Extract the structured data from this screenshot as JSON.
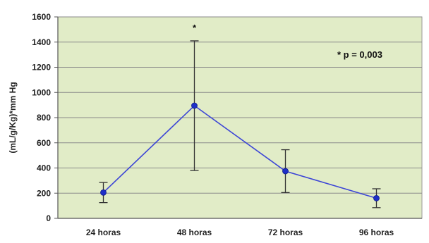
{
  "chart_data": {
    "type": "line",
    "ylabel": "(mL/g/Kg)*mm Hg",
    "categories": [
      "24 horas",
      "48 horas",
      "72 horas",
      "96 horas"
    ],
    "series": [
      {
        "values": [
          205,
          895,
          375,
          160
        ],
        "err_low": [
          125,
          380,
          205,
          85
        ],
        "err_high": [
          285,
          1410,
          545,
          235
        ]
      }
    ],
    "yticks": [
      "0",
      "200",
      "400",
      "600",
      "800",
      "1000",
      "1200",
      "1400",
      "1600"
    ],
    "ylim": [
      0,
      1600
    ],
    "grid": true,
    "legend": "none",
    "annotations": [
      {
        "text": "* p = 0,003"
      },
      {
        "text": "*",
        "category_index": 1
      }
    ],
    "colors": {
      "plot_background": "#e1ecc7",
      "line": "#3c45d6",
      "marker": "#1e2fc8",
      "errorbar": "#333333",
      "grid": "#8a8a8a"
    }
  }
}
